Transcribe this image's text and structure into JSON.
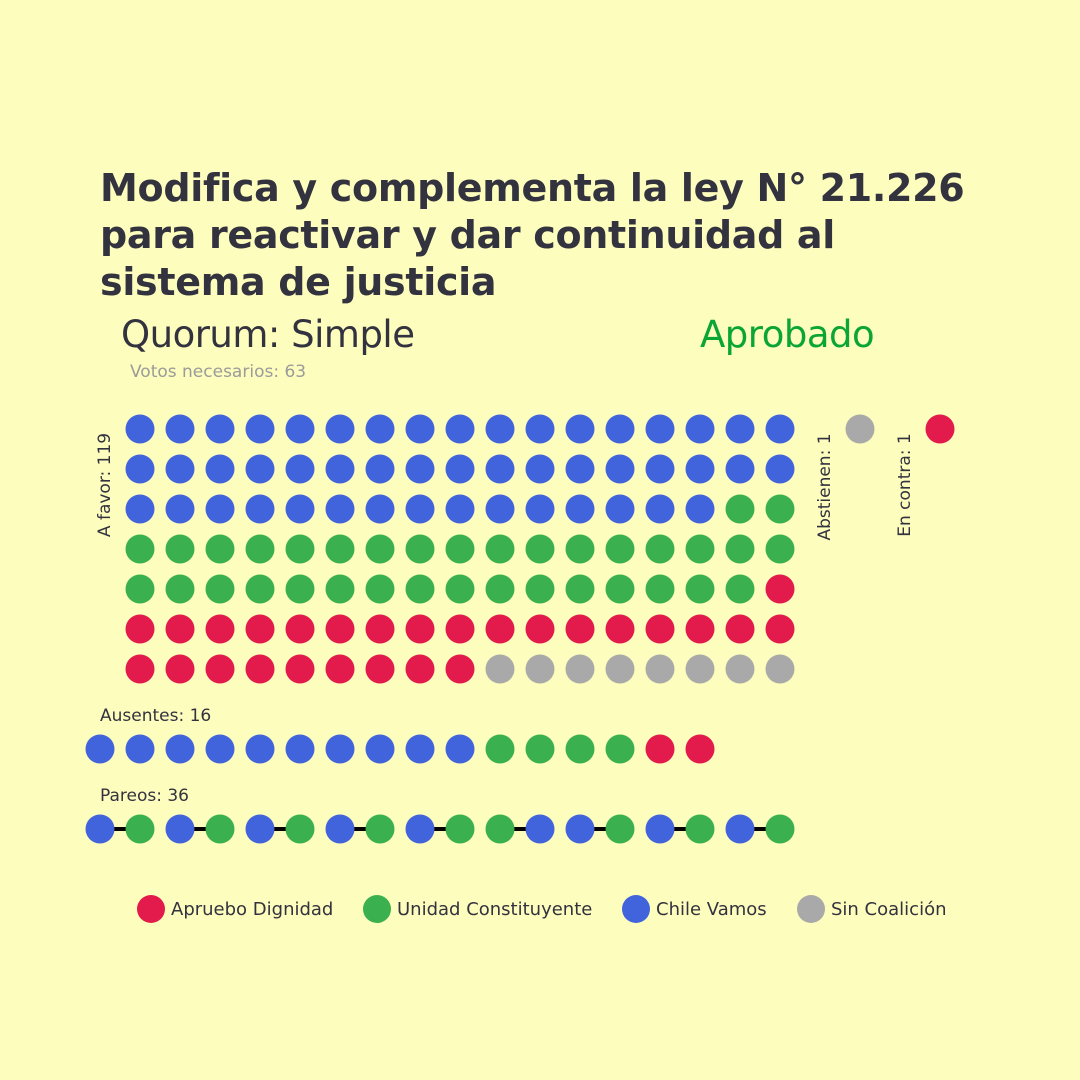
{
  "title": "Modifica y complementa la ley N° 21.226 para reactivar y dar continuidad al sistema de justicia",
  "quorum_label": "Quorum: Simple",
  "result_label": "Aprobado",
  "votes_needed_label": "Votos necesarios: 63",
  "colors": {
    "background": "#fdfdbd",
    "apruebo_dignidad": "#e31a4c",
    "unidad_constituyente": "#3ab04f",
    "chile_vamos": "#4163dc",
    "sin_coalicion": "#a9a9a9",
    "result": "#0aa535",
    "text": "#33323f"
  },
  "chart_data": {
    "type": "waffle",
    "groups": [
      {
        "key": "a_favor",
        "label": "A favor: 119",
        "total": 119,
        "composition": {
          "chile_vamos": 49,
          "unidad_constituyente": 35,
          "apruebo_dignidad": 27,
          "sin_coalicion": 8
        }
      },
      {
        "key": "abstienen",
        "label": "Abstienen: 1",
        "total": 1,
        "composition": {
          "sin_coalicion": 1
        }
      },
      {
        "key": "en_contra",
        "label": "En contra: 1",
        "total": 1,
        "composition": {
          "apruebo_dignidad": 1
        }
      },
      {
        "key": "ausentes",
        "label": "Ausentes: 16",
        "total": 16,
        "composition": {
          "chile_vamos": 10,
          "unidad_constituyente": 4,
          "apruebo_dignidad": 2
        }
      },
      {
        "key": "pareos",
        "label": "Pareos: 36",
        "total": 36,
        "visible_dots": [
          "chile_vamos",
          "unidad_constituyente",
          "chile_vamos",
          "unidad_constituyente",
          "chile_vamos",
          "unidad_constituyente",
          "chile_vamos",
          "unidad_constituyente",
          "chile_vamos",
          "unidad_constituyente",
          "unidad_constituyente",
          "chile_vamos",
          "chile_vamos",
          "unidad_constituyente",
          "chile_vamos",
          "unidad_constituyente",
          "chile_vamos",
          "unidad_constituyente"
        ]
      }
    ],
    "legend": [
      {
        "key": "apruebo_dignidad",
        "label": "Apruebo Dignidad"
      },
      {
        "key": "unidad_constituyente",
        "label": "Unidad Constituyente"
      },
      {
        "key": "chile_vamos",
        "label": "Chile Vamos"
      },
      {
        "key": "sin_coalicion",
        "label": "Sin Coalición"
      }
    ],
    "legend_position": "bottom"
  }
}
